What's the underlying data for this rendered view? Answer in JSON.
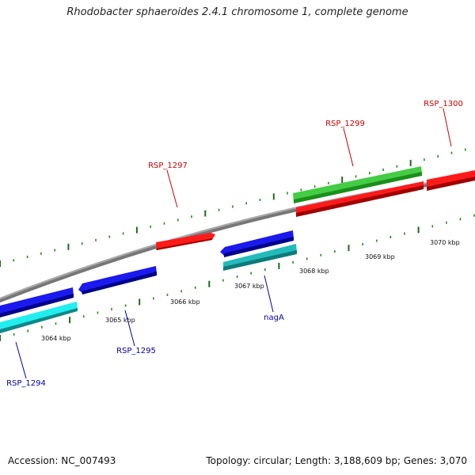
{
  "title": "Rhodobacter sphaeroides 2.4.1 chromosome 1, complete genome",
  "footer": {
    "accession": "Accession: NC_007493",
    "summary": "Topology: circular; Length: 3,188,609 bp; Genes: 3,070"
  },
  "colors": {
    "backbone": "#888888",
    "tick_major": "#1a6b1a",
    "tick_minor": "#1a8f1a",
    "label_forward": "#cc0000",
    "label_reverse": "#0000aa",
    "red": "#ff1a1a",
    "green": "#44cc44",
    "blue": "#1a1aee",
    "cyan": "#22dddd",
    "teal": "#22bbbb"
  },
  "scale": {
    "unit": "kbp",
    "labels": [
      "3064 kbp",
      "3065 kbp",
      "3066 kbp",
      "3067 kbp",
      "3068 kbp",
      "3069 kbp",
      "3070 kbp"
    ]
  },
  "genes": [
    {
      "label": "RSP_1294",
      "strand": "reverse",
      "color_key": "blue"
    },
    {
      "label": "RSP_1295",
      "strand": "reverse",
      "color_key": "blue"
    },
    {
      "label": "RSP_1297",
      "strand": "forward",
      "color_key": "red"
    },
    {
      "label": "nagA",
      "strand": "reverse",
      "color_key": "blue"
    },
    {
      "label": "RSP_1299",
      "strand": "forward",
      "color_key": "green"
    },
    {
      "label": "RSP_1300",
      "strand": "forward",
      "color_key": "red"
    }
  ]
}
